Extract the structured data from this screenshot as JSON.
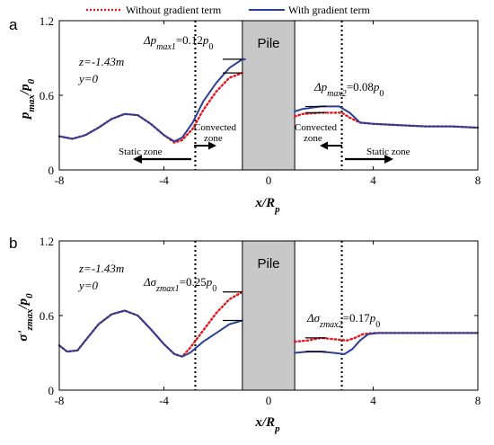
{
  "legend": {
    "without": "Without gradient term",
    "with": "With gradient term"
  },
  "colors": {
    "without": "#e8141c",
    "with": "#2d3e95",
    "pile": "#c8c8c8"
  },
  "chart_data": [
    {
      "type": "line",
      "panel": "a",
      "xlabel": "x/R_p",
      "ylabel": "p_max/p_0",
      "xlim": [
        -8,
        8
      ],
      "ylim": [
        0,
        1.2
      ],
      "xticks": [
        "-8",
        "-4",
        "0",
        "4",
        "8"
      ],
      "yticks": [
        "0",
        "0.6",
        "1.2"
      ],
      "grid": false,
      "legend_position": "top",
      "pile_label": "Pile",
      "pile_span": [
        -1,
        1
      ],
      "zone_lines": [
        -2.8,
        2.8
      ],
      "params": {
        "z": "z=-1.43m",
        "y": "y=0"
      },
      "annotations": {
        "delta1": "Δp_max1=0.12p_0",
        "delta2": "Δp_max2=0.08p_0",
        "static_left": "Static zone",
        "static_right": "Static zone",
        "convected_left_1": "Convected",
        "convected_left_2": "zone",
        "convected_right_1": "Convected",
        "convected_right_2": "zone"
      },
      "series": [
        {
          "name": "Without gradient term",
          "style": "dotted",
          "segments": [
            [
              [
                -8,
                0.27
              ],
              [
                -7.5,
                0.25
              ],
              [
                -7,
                0.28
              ],
              [
                -6.5,
                0.34
              ],
              [
                -6,
                0.41
              ],
              [
                -5.5,
                0.45
              ],
              [
                -5,
                0.44
              ],
              [
                -4.5,
                0.37
              ],
              [
                -4,
                0.28
              ],
              [
                -3.6,
                0.22
              ],
              [
                -3.3,
                0.24
              ],
              [
                -2.9,
                0.33
              ],
              [
                -2.5,
                0.48
              ],
              [
                -2.0,
                0.63
              ],
              [
                -1.5,
                0.74
              ],
              [
                -1.0,
                0.78
              ]
            ],
            [
              [
                1.0,
                0.43
              ],
              [
                1.3,
                0.45
              ],
              [
                2.0,
                0.46
              ],
              [
                2.8,
                0.46
              ],
              [
                3.1,
                0.42
              ],
              [
                3.5,
                0.38
              ],
              [
                4.0,
                0.37
              ],
              [
                5,
                0.36
              ],
              [
                6,
                0.35
              ],
              [
                7,
                0.35
              ],
              [
                8,
                0.34
              ]
            ]
          ]
        },
        {
          "name": "With gradient term",
          "style": "solid",
          "segments": [
            [
              [
                -8,
                0.27
              ],
              [
                -7.5,
                0.25
              ],
              [
                -7,
                0.28
              ],
              [
                -6.5,
                0.34
              ],
              [
                -6,
                0.41
              ],
              [
                -5.5,
                0.45
              ],
              [
                -5,
                0.44
              ],
              [
                -4.5,
                0.37
              ],
              [
                -4,
                0.28
              ],
              [
                -3.6,
                0.23
              ],
              [
                -3.3,
                0.26
              ],
              [
                -2.9,
                0.38
              ],
              [
                -2.5,
                0.55
              ],
              [
                -2.0,
                0.7
              ],
              [
                -1.5,
                0.82
              ],
              [
                -1.0,
                0.89
              ],
              [
                -0.9,
                0.89
              ]
            ],
            [
              [
                1.0,
                0.47
              ],
              [
                1.3,
                0.49
              ],
              [
                2.0,
                0.51
              ],
              [
                2.7,
                0.51
              ],
              [
                3.1,
                0.46
              ],
              [
                3.5,
                0.38
              ],
              [
                4.0,
                0.37
              ],
              [
                5,
                0.36
              ],
              [
                6,
                0.35
              ],
              [
                7,
                0.35
              ],
              [
                8,
                0.34
              ]
            ]
          ]
        }
      ]
    },
    {
      "type": "line",
      "panel": "b",
      "xlabel": "x/R_p",
      "ylabel": "σ'_zmax/p_0",
      "xlim": [
        -8,
        8
      ],
      "ylim": [
        0,
        1.2
      ],
      "xticks": [
        "-8",
        "-4",
        "0",
        "4",
        "8"
      ],
      "yticks": [
        "0",
        "0.6",
        "1.2"
      ],
      "grid": false,
      "pile_label": "Pile",
      "pile_span": [
        -1,
        1
      ],
      "zone_lines": [
        -2.8,
        2.8
      ],
      "params": {
        "z": "z=-1.43m",
        "y": "y=0"
      },
      "annotations": {
        "delta1": "Δσ_zmax1=0.25p_0",
        "delta2": "Δσ_zmax2=0.17p_0"
      },
      "series": [
        {
          "name": "Without gradient term",
          "style": "dotted",
          "segments": [
            [
              [
                -8,
                0.36
              ],
              [
                -7.7,
                0.31
              ],
              [
                -7.3,
                0.32
              ],
              [
                -7,
                0.4
              ],
              [
                -6.5,
                0.53
              ],
              [
                -6,
                0.61
              ],
              [
                -5.5,
                0.64
              ],
              [
                -5,
                0.6
              ],
              [
                -4.5,
                0.49
              ],
              [
                -4,
                0.37
              ],
              [
                -3.6,
                0.29
              ],
              [
                -3.3,
                0.27
              ],
              [
                -3.0,
                0.34
              ],
              [
                -2.5,
                0.48
              ],
              [
                -2.0,
                0.62
              ],
              [
                -1.5,
                0.73
              ],
              [
                -1.0,
                0.79
              ]
            ],
            [
              [
                1.0,
                0.39
              ],
              [
                1.5,
                0.4
              ],
              [
                2.0,
                0.42
              ],
              [
                2.5,
                0.41
              ],
              [
                3.0,
                0.4
              ],
              [
                3.3,
                0.42
              ],
              [
                3.6,
                0.45
              ],
              [
                4.0,
                0.46
              ],
              [
                5,
                0.46
              ],
              [
                6,
                0.46
              ],
              [
                7,
                0.46
              ],
              [
                8,
                0.46
              ]
            ]
          ]
        },
        {
          "name": "With gradient term",
          "style": "solid",
          "segments": [
            [
              [
                -8,
                0.36
              ],
              [
                -7.7,
                0.31
              ],
              [
                -7.3,
                0.32
              ],
              [
                -7,
                0.4
              ],
              [
                -6.5,
                0.53
              ],
              [
                -6,
                0.61
              ],
              [
                -5.5,
                0.64
              ],
              [
                -5,
                0.6
              ],
              [
                -4.5,
                0.49
              ],
              [
                -4,
                0.37
              ],
              [
                -3.6,
                0.29
              ],
              [
                -3.3,
                0.27
              ],
              [
                -3.0,
                0.3
              ],
              [
                -2.5,
                0.39
              ],
              [
                -2.0,
                0.46
              ],
              [
                -1.5,
                0.53
              ],
              [
                -1.0,
                0.56
              ]
            ],
            [
              [
                1.0,
                0.3
              ],
              [
                1.5,
                0.31
              ],
              [
                2.0,
                0.31
              ],
              [
                2.5,
                0.3
              ],
              [
                2.9,
                0.29
              ],
              [
                3.2,
                0.33
              ],
              [
                3.5,
                0.4
              ],
              [
                3.8,
                0.45
              ],
              [
                4.2,
                0.46
              ],
              [
                5,
                0.46
              ],
              [
                6,
                0.46
              ],
              [
                7,
                0.46
              ],
              [
                8,
                0.46
              ]
            ]
          ]
        }
      ]
    }
  ]
}
